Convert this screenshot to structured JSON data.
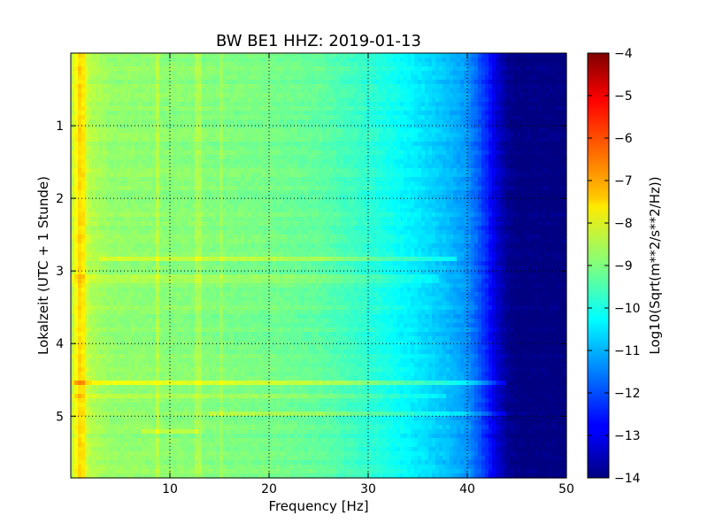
{
  "chart_data": {
    "type": "heatmap",
    "title": "BW BE1 HHZ: 2019-01-13",
    "xlabel": "Frequency [Hz]",
    "ylabel": "Lokalzeit (UTC + 1 Stunde)",
    "xlim": [
      0,
      50
    ],
    "ylim": [
      5.85,
      0
    ],
    "x_ticks": [
      10,
      20,
      30,
      40,
      50
    ],
    "y_ticks": [
      1,
      2,
      3,
      4,
      5
    ],
    "grid": true,
    "colormap": "jet",
    "colorbar": {
      "label": "Log10(Sqrt(m**2/s**2/Hz))",
      "range": [
        -14,
        -4
      ],
      "ticks": [
        -4,
        -5,
        -6,
        -7,
        -8,
        -9,
        -10,
        -11,
        -12,
        -13,
        -14
      ]
    },
    "spectrum_profile": {
      "frequency_hz": [
        0,
        0.5,
        1,
        2,
        4,
        10,
        20,
        25,
        30,
        33,
        36,
        38,
        40,
        41,
        42,
        43,
        44,
        45,
        50
      ],
      "log10_amplitude": [
        -8.6,
        -7.8,
        -7.9,
        -8.5,
        -8.8,
        -8.9,
        -9.1,
        -9.3,
        -9.8,
        -10.2,
        -10.6,
        -10.9,
        -11.3,
        -11.8,
        -12.4,
        -13.2,
        -13.8,
        -14,
        -14
      ]
    },
    "horizontal_features": [
      {
        "time": 2.82,
        "x_range": [
          3,
          39
        ],
        "delta": 0.6
      },
      {
        "time": 3.1,
        "x_range": [
          0,
          37
        ],
        "delta": 0.3
      },
      {
        "time": 4.55,
        "x_range": [
          0,
          44
        ],
        "delta": 1.0
      },
      {
        "time": 4.72,
        "x_range": [
          0,
          38
        ],
        "delta": 0.35
      },
      {
        "time": 4.95,
        "x_range": [
          14,
          44
        ],
        "delta": 0.45
      },
      {
        "time": 5.22,
        "x_range": [
          7,
          13
        ],
        "delta": 0.5
      }
    ],
    "vertical_features": [
      {
        "frequency": 8.8,
        "delta": 0.35
      },
      {
        "frequency": 12.9,
        "delta": 0.35
      },
      {
        "frequency": 15.2,
        "delta": 0.25
      },
      {
        "frequency": 1.1,
        "delta": 0.5
      }
    ]
  }
}
